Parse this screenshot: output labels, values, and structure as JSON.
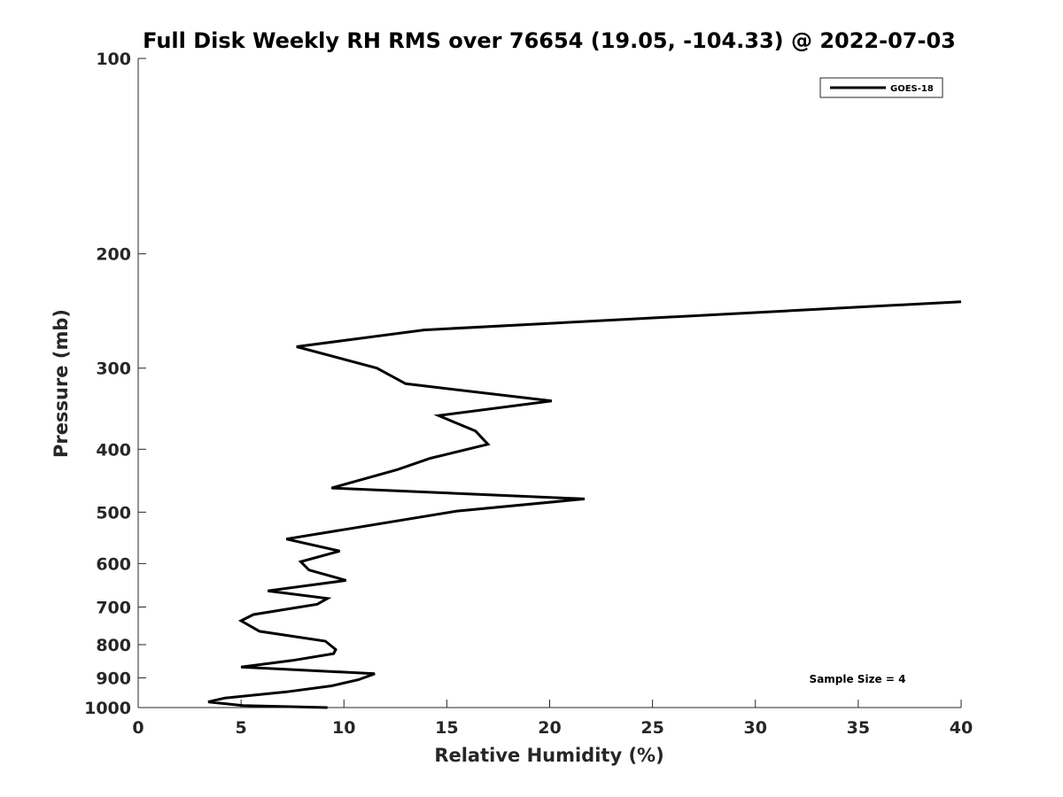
{
  "chart_data": {
    "type": "line",
    "title": "Full Disk Weekly RH RMS over 76654 (19.05, -104.33) @ 2022-07-03",
    "xlabel": "Relative Humidity (%)",
    "ylabel": "Pressure (mb)",
    "xlim": [
      0,
      40
    ],
    "ylim": [
      100,
      1000
    ],
    "yscale": "log",
    "reverse_y": true,
    "grid": false,
    "legend_position": "top-right",
    "xticks": [
      "0",
      "5",
      "10",
      "15",
      "20",
      "25",
      "30",
      "35",
      "40"
    ],
    "yticks": [
      "100",
      "200",
      "300",
      "400",
      "500",
      "600",
      "700",
      "800",
      "900",
      "1000"
    ],
    "annotation": "Sample Size = 4",
    "series": [
      {
        "name": "GOES-18",
        "color": "#000000",
        "points": [
          [
            40.0,
            237
          ],
          [
            13.9,
            262
          ],
          [
            7.7,
            278
          ],
          [
            11.6,
            300
          ],
          [
            13.0,
            317
          ],
          [
            20.1,
            337
          ],
          [
            14.6,
            355
          ],
          [
            16.4,
            375
          ],
          [
            17.0,
            393
          ],
          [
            14.2,
            413
          ],
          [
            12.6,
            430
          ],
          [
            9.4,
            459
          ],
          [
            21.7,
            477
          ],
          [
            15.5,
            498
          ],
          [
            7.2,
            550
          ],
          [
            9.8,
            574
          ],
          [
            7.9,
            596
          ],
          [
            8.3,
            614
          ],
          [
            10.1,
            637
          ],
          [
            6.3,
            661
          ],
          [
            9.2,
            679
          ],
          [
            8.7,
            693
          ],
          [
            5.6,
            719
          ],
          [
            5.0,
            735
          ],
          [
            5.9,
            763
          ],
          [
            9.1,
            790
          ],
          [
            9.6,
            814
          ],
          [
            9.5,
            826
          ],
          [
            7.5,
            846
          ],
          [
            5.0,
            866
          ],
          [
            11.5,
            887
          ],
          [
            10.7,
            906
          ],
          [
            9.4,
            926
          ],
          [
            7.2,
            946
          ],
          [
            4.2,
            967
          ],
          [
            3.4,
            980
          ],
          [
            5.1,
            993
          ],
          [
            9.2,
            1007
          ]
        ]
      }
    ]
  }
}
